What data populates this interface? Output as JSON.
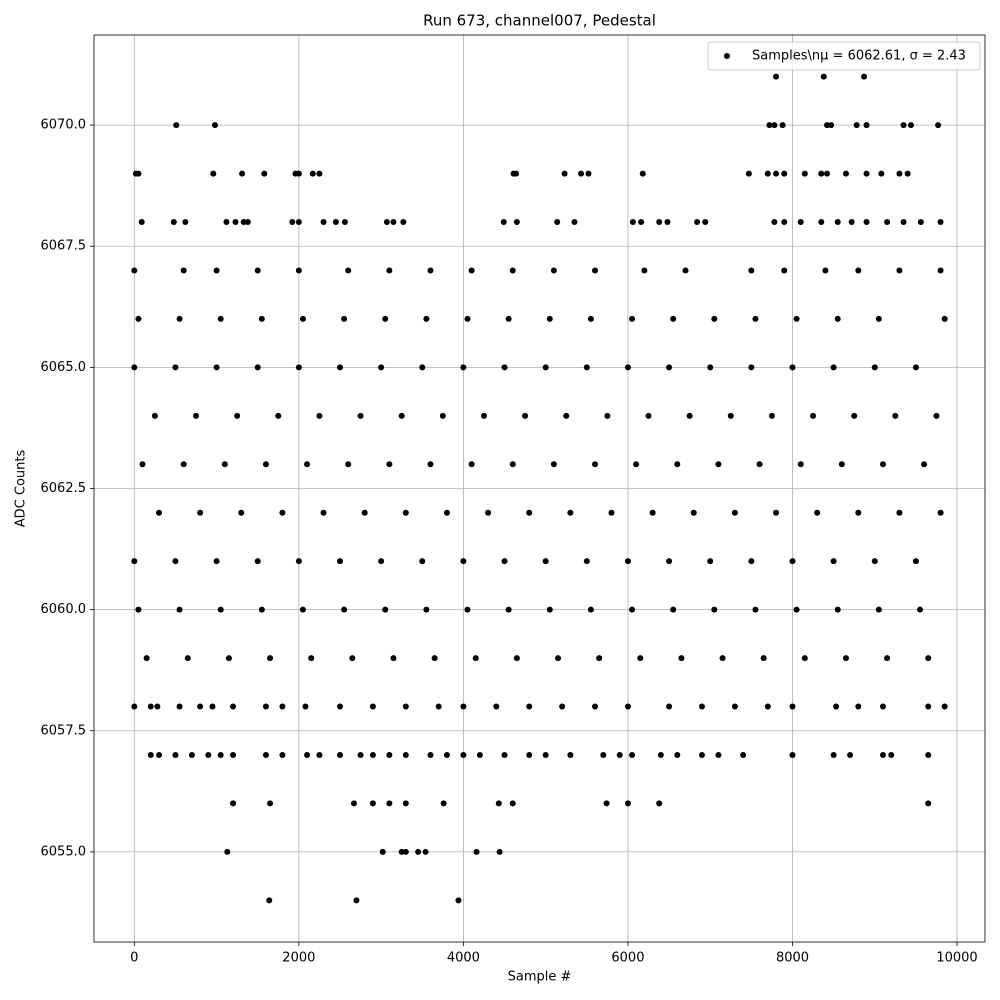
{
  "chart_data": {
    "type": "scatter",
    "title": "Run 673, channel007, Pedestal",
    "x_label": "Sample #",
    "y_label": "ADC Counts",
    "xlim": [
      -490,
      10340
    ],
    "ylim": [
      6053.14,
      6071.86
    ],
    "xticks": [
      0,
      2000,
      4000,
      6000,
      8000,
      10000
    ],
    "yticks": [
      {
        "value": 6055,
        "label": "6055.0"
      },
      {
        "value": 6057.5,
        "label": "6057.5"
      },
      {
        "value": 6060,
        "label": "6060.0"
      },
      {
        "value": 6062.5,
        "label": "6062.5"
      },
      {
        "value": 6065,
        "label": "6065.0"
      },
      {
        "value": 6067.5,
        "label": "6067.5"
      },
      {
        "value": 6070,
        "label": "6070.0"
      }
    ],
    "grid": true,
    "legend": "upper right",
    "series": [
      {
        "name": "Samples\\nμ = 6062.61, σ = 2.43",
        "color": "#000000",
        "x": [
          7800,
          8380,
          8870,
          510,
          980,
          7720,
          7780,
          7880,
          8420,
          8470,
          8780,
          8900,
          9350,
          9440,
          9770,
          20,
          50,
          960,
          1310,
          1580,
          1960,
          2000,
          2170,
          2250,
          4610,
          4640,
          5230,
          5430,
          5520,
          6180,
          7470,
          7700,
          7800,
          7900,
          8150,
          8350,
          8420,
          8650,
          8900,
          9080,
          9300,
          9400,
          90,
          480,
          620,
          1120,
          1230,
          1330,
          1380,
          1920,
          2000,
          2300,
          2450,
          2560,
          3070,
          3150,
          3270,
          4490,
          4650,
          5140,
          5350,
          6060,
          6160,
          6380,
          6480,
          6840,
          6940,
          7780,
          7900,
          8100,
          8350,
          8550,
          8720,
          8900,
          9150,
          9350,
          9560,
          9800,
          0,
          600,
          1000,
          1500,
          2000,
          2600,
          3100,
          3600,
          4100,
          4600,
          5100,
          5600,
          6200,
          6700,
          7500,
          7900,
          8400,
          8800,
          9300,
          9800,
          50,
          550,
          1050,
          1550,
          2050,
          2550,
          3050,
          3550,
          4050,
          4550,
          5050,
          5550,
          6050,
          6550,
          7050,
          7550,
          8050,
          8550,
          9050,
          9850,
          0,
          500,
          1000,
          1500,
          2000,
          2500,
          3000,
          3500,
          4000,
          4500,
          5000,
          5500,
          6000,
          6500,
          7000,
          7500,
          8000,
          8500,
          9000,
          9500,
          250,
          750,
          1250,
          1750,
          2250,
          2750,
          3250,
          3750,
          4250,
          4750,
          5250,
          5750,
          6250,
          6750,
          7250,
          7750,
          8250,
          8750,
          9250,
          9750,
          100,
          600,
          1100,
          1600,
          2100,
          2600,
          3100,
          3600,
          4100,
          4600,
          5100,
          5600,
          6100,
          6600,
          7100,
          7600,
          8100,
          8600,
          9100,
          9600,
          300,
          800,
          1300,
          1800,
          2300,
          2800,
          3300,
          3800,
          4300,
          4800,
          5300,
          5800,
          6300,
          6800,
          7300,
          7800,
          8300,
          8800,
          9300,
          9800,
          0,
          500,
          1000,
          1500,
          2000,
          2500,
          3000,
          3500,
          4000,
          4500,
          5000,
          5500,
          6000,
          6500,
          7000,
          7500,
          8000,
          8500,
          9000,
          9500,
          50,
          550,
          1050,
          1550,
          2050,
          2550,
          3050,
          3550,
          4050,
          4550,
          5050,
          5550,
          6050,
          6550,
          7050,
          7550,
          8050,
          8550,
          9050,
          9550,
          150,
          650,
          1150,
          1650,
          2150,
          2650,
          3150,
          3650,
          4150,
          4650,
          5150,
          5650,
          6150,
          6650,
          7150,
          7650,
          8150,
          8650,
          9150,
          9650,
          0,
          200,
          280,
          550,
          800,
          950,
          1200,
          1600,
          1800,
          2080,
          2500,
          2900,
          3300,
          3700,
          4000,
          4400,
          4800,
          5200,
          5600,
          6000,
          6500,
          6900,
          7300,
          7700,
          8000,
          8530,
          8800,
          9100,
          9650,
          9850,
          200,
          300,
          500,
          700,
          900,
          1050,
          1200,
          1600,
          1800,
          2100,
          2250,
          2500,
          2750,
          2900,
          3100,
          3300,
          3600,
          3800,
          4000,
          4200,
          4500,
          4800,
          5000,
          5300,
          5700,
          5900,
          6050,
          6400,
          6600,
          6900,
          7100,
          7400,
          8000,
          8500,
          8700,
          9100,
          9200,
          9650,
          1200,
          1650,
          2670,
          2900,
          3100,
          3300,
          3760,
          4430,
          4600,
          5740,
          6000,
          6380,
          9650,
          1130,
          3020,
          3250,
          3300,
          3450,
          3540,
          4160,
          4440,
          1640,
          2700,
          3940
        ],
        "values": [
          6071,
          6071,
          6071,
          6070,
          6070,
          6070,
          6070,
          6070,
          6070,
          6070,
          6070,
          6070,
          6070,
          6070,
          6070,
          6069,
          6069,
          6069,
          6069,
          6069,
          6069,
          6069,
          6069,
          6069,
          6069,
          6069,
          6069,
          6069,
          6069,
          6069,
          6069,
          6069,
          6069,
          6069,
          6069,
          6069,
          6069,
          6069,
          6069,
          6069,
          6069,
          6069,
          6068,
          6068,
          6068,
          6068,
          6068,
          6068,
          6068,
          6068,
          6068,
          6068,
          6068,
          6068,
          6068,
          6068,
          6068,
          6068,
          6068,
          6068,
          6068,
          6068,
          6068,
          6068,
          6068,
          6068,
          6068,
          6068,
          6068,
          6068,
          6068,
          6068,
          6068,
          6068,
          6068,
          6068,
          6068,
          6068,
          6067,
          6067,
          6067,
          6067,
          6067,
          6067,
          6067,
          6067,
          6067,
          6067,
          6067,
          6067,
          6067,
          6067,
          6067,
          6067,
          6067,
          6067,
          6067,
          6067,
          6066,
          6066,
          6066,
          6066,
          6066,
          6066,
          6066,
          6066,
          6066,
          6066,
          6066,
          6066,
          6066,
          6066,
          6066,
          6066,
          6066,
          6066,
          6066,
          6066,
          6065,
          6065,
          6065,
          6065,
          6065,
          6065,
          6065,
          6065,
          6065,
          6065,
          6065,
          6065,
          6065,
          6065,
          6065,
          6065,
          6065,
          6065,
          6065,
          6065,
          6064,
          6064,
          6064,
          6064,
          6064,
          6064,
          6064,
          6064,
          6064,
          6064,
          6064,
          6064,
          6064,
          6064,
          6064,
          6064,
          6064,
          6064,
          6064,
          6064,
          6063,
          6063,
          6063,
          6063,
          6063,
          6063,
          6063,
          6063,
          6063,
          6063,
          6063,
          6063,
          6063,
          6063,
          6063,
          6063,
          6063,
          6063,
          6063,
          6063,
          6062,
          6062,
          6062,
          6062,
          6062,
          6062,
          6062,
          6062,
          6062,
          6062,
          6062,
          6062,
          6062,
          6062,
          6062,
          6062,
          6062,
          6062,
          6062,
          6062,
          6061,
          6061,
          6061,
          6061,
          6061,
          6061,
          6061,
          6061,
          6061,
          6061,
          6061,
          6061,
          6061,
          6061,
          6061,
          6061,
          6061,
          6061,
          6061,
          6061,
          6060,
          6060,
          6060,
          6060,
          6060,
          6060,
          6060,
          6060,
          6060,
          6060,
          6060,
          6060,
          6060,
          6060,
          6060,
          6060,
          6060,
          6060,
          6060,
          6060,
          6059,
          6059,
          6059,
          6059,
          6059,
          6059,
          6059,
          6059,
          6059,
          6059,
          6059,
          6059,
          6059,
          6059,
          6059,
          6059,
          6059,
          6059,
          6059,
          6059,
          6058,
          6058,
          6058,
          6058,
          6058,
          6058,
          6058,
          6058,
          6058,
          6058,
          6058,
          6058,
          6058,
          6058,
          6058,
          6058,
          6058,
          6058,
          6058,
          6058,
          6058,
          6058,
          6058,
          6058,
          6058,
          6058,
          6058,
          6058,
          6058,
          6058,
          6057,
          6057,
          6057,
          6057,
          6057,
          6057,
          6057,
          6057,
          6057,
          6057,
          6057,
          6057,
          6057,
          6057,
          6057,
          6057,
          6057,
          6057,
          6057,
          6057,
          6057,
          6057,
          6057,
          6057,
          6057,
          6057,
          6057,
          6057,
          6057,
          6057,
          6057,
          6057,
          6057,
          6057,
          6057,
          6057,
          6057,
          6057,
          6056,
          6056,
          6056,
          6056,
          6056,
          6056,
          6056,
          6056,
          6056,
          6056,
          6056,
          6056,
          6056,
          6055,
          6055,
          6055,
          6055,
          6055,
          6055,
          6055,
          6055,
          6054,
          6054,
          6054
        ]
      }
    ]
  }
}
